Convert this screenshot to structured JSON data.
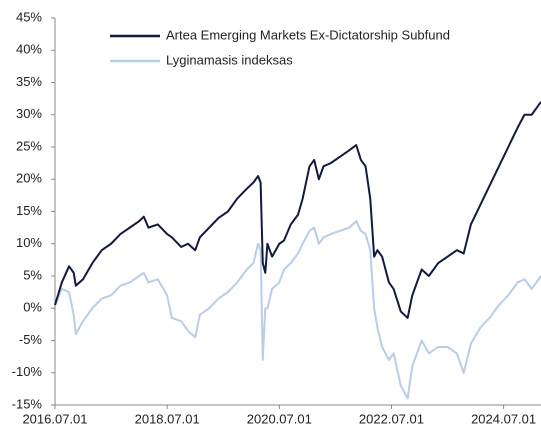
{
  "chart_data": {
    "type": "line",
    "x": [
      "2016.07.01",
      "2016.08.15",
      "2016.10.01",
      "2016.11.01",
      "2016.11.15",
      "2017.01.01",
      "2017.03.01",
      "2017.05.01",
      "2017.07.01",
      "2017.09.01",
      "2017.11.01",
      "2018.01.01",
      "2018.02.01",
      "2018.03.01",
      "2018.05.01",
      "2018.07.01",
      "2018.08.01",
      "2018.10.01",
      "2018.11.15",
      "2019.01.01",
      "2019.02.01",
      "2019.04.01",
      "2019.06.01",
      "2019.08.01",
      "2019.10.01",
      "2019.12.01",
      "2020.01.15",
      "2020.02.15",
      "2020.03.01",
      "2020.03.15",
      "2020.04.01",
      "2020.04.15",
      "2020.05.15",
      "2020.07.01",
      "2020.08.01",
      "2020.09.15",
      "2020.11.01",
      "2020.12.01",
      "2021.01.15",
      "2021.02.15",
      "2021.03.15",
      "2021.04.15",
      "2021.06.01",
      "2021.08.01",
      "2021.10.01",
      "2021.11.15",
      "2021.12.15",
      "2022.01.15",
      "2022.02.15",
      "2022.03.10",
      "2022.04.01",
      "2022.05.01",
      "2022.06.15",
      "2022.07.15",
      "2022.09.01",
      "2022.10.15",
      "2022.11.15",
      "2023.01.15",
      "2023.03.01",
      "2023.05.01",
      "2023.07.01",
      "2023.09.01",
      "2023.10.15",
      "2023.12.01",
      "2024.02.01",
      "2024.04.01",
      "2024.06.01",
      "2024.08.01",
      "2024.10.01",
      "2024.11.15",
      "2025.01.01",
      "2025.03.01"
    ],
    "series": [
      {
        "name": "Artea Emerging Markets Ex-Dictatorship Subfund",
        "color": "#0f1a45",
        "values": [
          0.5,
          4,
          6.5,
          5.5,
          3.5,
          4.5,
          7,
          9,
          10,
          11.5,
          12.5,
          13.5,
          14.2,
          12.5,
          13,
          11.5,
          11,
          9.5,
          10,
          9,
          11,
          12.5,
          14,
          15,
          17,
          18.5,
          19.5,
          20.5,
          19.5,
          7,
          5.5,
          10,
          8,
          10,
          10.5,
          13,
          14.5,
          17,
          22,
          23,
          20,
          22,
          22.5,
          23.5,
          24.5,
          25.3,
          23,
          22,
          17,
          8,
          9,
          8,
          4,
          3,
          -0.5,
          -1.5,
          2,
          6,
          5,
          7,
          8,
          9,
          8.5,
          13,
          16,
          19,
          22,
          25,
          28,
          30,
          30,
          32
        ]
      },
      {
        "name": "Lyginamasis indeksas",
        "color": "#b8cdeb",
        "values": [
          0.5,
          3,
          2.5,
          -1,
          -4,
          -2,
          0,
          1.5,
          2,
          3.5,
          4,
          5,
          5.5,
          4,
          4.5,
          2,
          -1.5,
          -2,
          -3.5,
          -4.5,
          -1,
          0,
          1.5,
          2.5,
          4,
          6,
          7,
          10,
          9,
          -8,
          0,
          0,
          3,
          4,
          6,
          7,
          8.5,
          10,
          12,
          12.5,
          10,
          11,
          11.5,
          12,
          12.5,
          13.5,
          12,
          11.5,
          9,
          0,
          -3,
          -6,
          -8,
          -7,
          -12,
          -14,
          -9,
          -5,
          -7,
          -6,
          -6,
          -7,
          -10,
          -5.5,
          -3,
          -1.5,
          0.5,
          2,
          4,
          4.5,
          3,
          5
        ]
      }
    ],
    "xlim": [
      "2016.07.01",
      "2025.03.01"
    ],
    "xticks": [
      "2016.07.01",
      "2018.07.01",
      "2020.07.01",
      "2022.07.01",
      "2024.07.01"
    ],
    "ylim": [
      -15,
      45
    ],
    "yticks": [
      {
        "value": -15,
        "label": "-15%"
      },
      {
        "value": -10,
        "label": "-10%"
      },
      {
        "value": -5,
        "label": "-5%"
      },
      {
        "value": 0,
        "label": "0%"
      },
      {
        "value": 5,
        "label": "5%"
      },
      {
        "value": 10,
        "label": "10%"
      },
      {
        "value": 15,
        "label": "15%"
      },
      {
        "value": 20,
        "label": "20%"
      },
      {
        "value": 25,
        "label": "25%"
      },
      {
        "value": 30,
        "label": "30%"
      },
      {
        "value": 35,
        "label": "35%"
      },
      {
        "value": 40,
        "label": "40%"
      },
      {
        "value": 45,
        "label": "45%"
      }
    ],
    "legend": "upper center",
    "grid": false
  }
}
